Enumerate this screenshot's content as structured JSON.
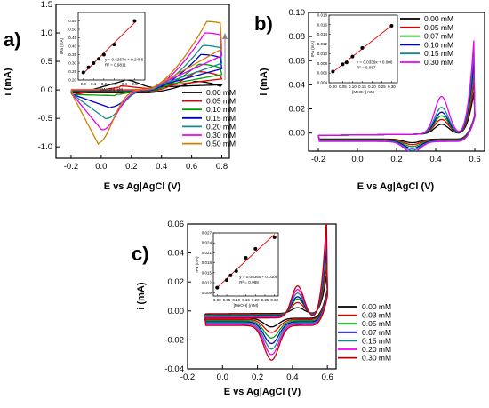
{
  "figure": {
    "panel_labels": [
      "a)",
      "b)",
      "c)"
    ]
  },
  "chart_data": [
    {
      "type": "line",
      "panel": "a)",
      "xlabel": "E vs Ag|AgCl (V)",
      "ylabel": "i (mA)",
      "xlim": [
        -0.3,
        0.85
      ],
      "ylim": [
        -1.2,
        1.5
      ],
      "xticks": [
        "-0.2",
        "0.0",
        "0.2",
        "0.4",
        "0.6",
        "0.8"
      ],
      "yticks": [
        "1.5",
        "1.0",
        "0.5",
        "0.0",
        "-0.5",
        "-1.0"
      ],
      "legend_position": "right",
      "series": [
        {
          "name": "0.00 mM",
          "color": "#000000",
          "anodic_peak": 0.15,
          "cathodic_peak": 0.16
        },
        {
          "name": "0.05 mM",
          "color": "#e00000",
          "anodic_peak": 0.32,
          "cathodic_peak": 0.05
        },
        {
          "name": "0.10 mM",
          "color": "#00a000",
          "anodic_peak": 0.45,
          "cathodic_peak": -0.1
        },
        {
          "name": "0.15 mM",
          "color": "#0000cc",
          "anodic_peak": 0.62,
          "cathodic_peak": -0.32
        },
        {
          "name": "0.20 mM",
          "color": "#138a8a",
          "anodic_peak": 0.78,
          "cathodic_peak": -0.52
        },
        {
          "name": "0.30 mM",
          "color": "#ee00ee",
          "anodic_peak": 1.0,
          "cathodic_peak": -0.72
        },
        {
          "name": "0.50 mM",
          "color": "#d08000",
          "anodic_peak": 1.2,
          "cathodic_peak": -0.95
        }
      ],
      "inset": {
        "ylabel": "IPa (mA)",
        "xlabel": "[MeOH] mM",
        "x": [
          0.0,
          0.05,
          0.1,
          0.15,
          0.2,
          0.3,
          0.5
        ],
        "y": [
          0.245,
          0.275,
          0.3,
          0.325,
          0.35,
          0.41,
          0.55
        ],
        "xlim": [
          -0.05,
          0.6
        ],
        "ylim": [
          0.2,
          0.6
        ],
        "xticks": [
          "0.0",
          "0.1",
          "0.2",
          "0.3",
          "0.4",
          "0.5"
        ],
        "yticks": [
          "0.55",
          "0.50",
          "0.45",
          "0.40",
          "0.35",
          "0.30",
          "0.25",
          "0.20"
        ],
        "equation": "y = 0.6267x + 0.2456",
        "r2": "R² = 0.9811"
      }
    },
    {
      "type": "line",
      "panel": "b)",
      "xlabel": "E vs Ag|AgCl (V)",
      "ylabel": "i (mA)",
      "xlim": [
        -0.25,
        0.65
      ],
      "ylim": [
        -0.015,
        0.1
      ],
      "xticks": [
        "-0.2",
        "0.0",
        "0.2",
        "0.4",
        "0.6"
      ],
      "yticks": [
        "0.10",
        "0.08",
        "0.06",
        "0.04",
        "0.02",
        "0.00"
      ],
      "legend_position": "top-right",
      "series": [
        {
          "name": "0.00 mM",
          "color": "#000000",
          "peak": 0.008
        },
        {
          "name": "0.05 mM",
          "color": "#e00000",
          "peak": 0.012
        },
        {
          "name": "0.07 mM",
          "color": "#00a000",
          "peak": 0.015
        },
        {
          "name": "0.10 mM",
          "color": "#0000cc",
          "peak": 0.018
        },
        {
          "name": "0.15 mM",
          "color": "#138a8a",
          "peak": 0.022
        },
        {
          "name": "0.30 mM",
          "color": "#ee00ee",
          "peak": 0.031
        }
      ],
      "inset": {
        "ylabel": "IPa (mA)",
        "xlabel": "[MeOH] mM",
        "x": [
          0.0,
          0.05,
          0.07,
          0.1,
          0.15,
          0.3
        ],
        "y": [
          0.0063,
          0.0078,
          0.0082,
          0.0094,
          0.0112,
          0.0158
        ],
        "xlim": [
          -0.02,
          0.33
        ],
        "ylim": [
          0.004,
          0.018
        ],
        "xticks": [
          "0.00",
          "0.05",
          "0.10",
          "0.15",
          "0.20",
          "0.25",
          "0.30"
        ],
        "yticks": [
          "0.018",
          "0.016",
          "0.014",
          "0.012",
          "0.010",
          "0.008",
          "0.006",
          "0.004"
        ],
        "equation": "y = 0.0339x + 0.006",
        "r2": "R² = 0.987"
      }
    },
    {
      "type": "line",
      "panel": "c)",
      "xlabel": "E vs Ag|AgCl (V)",
      "ylabel": "i (mA)",
      "xlim": [
        -0.2,
        0.65
      ],
      "ylim": [
        -0.04,
        0.06
      ],
      "xticks": [
        "-0.2",
        "0.0",
        "0.2",
        "0.4",
        "0.6"
      ],
      "yticks": [
        "0.06",
        "0.04",
        "0.02",
        "0.00",
        "-0.02",
        "-0.04"
      ],
      "legend_position": "right",
      "series": [
        {
          "name": "0.00 mM",
          "color": "#000000",
          "peak": 0.004
        },
        {
          "name": "0.03 mM",
          "color": "#e00000",
          "peak": 0.008
        },
        {
          "name": "0.05 mM",
          "color": "#00a000",
          "peak": 0.011
        },
        {
          "name": "0.07 mM",
          "color": "#0000cc",
          "peak": 0.013
        },
        {
          "name": "0.15 mM",
          "color": "#138a8a",
          "peak": 0.016
        },
        {
          "name": "0.20 mM",
          "color": "#ee00ee",
          "peak": 0.019
        },
        {
          "name": "0.30 mM",
          "color": "#c00000",
          "peak": 0.022
        }
      ],
      "inset": {
        "ylabel": "IPa (mA)",
        "xlabel": "[MeOH] (mM)",
        "x": [
          0.0,
          0.05,
          0.07,
          0.1,
          0.15,
          0.2,
          0.3
        ],
        "y": [
          0.0105,
          0.0128,
          0.0142,
          0.0155,
          0.0195,
          0.0222,
          0.0257
        ],
        "xlim": [
          -0.02,
          0.32
        ],
        "ylim": [
          0.008,
          0.027
        ],
        "xticks": [
          "0.00",
          "0.05",
          "0.10",
          "0.15",
          "0.20",
          "0.25",
          "0.30"
        ],
        "yticks": [
          "0.027",
          "0.024",
          "0.021",
          "0.018",
          "0.015",
          "0.012",
          "0.009"
        ],
        "equation": "y = 0.0536x + 0.0109",
        "r2": "R² = 0.988"
      }
    }
  ]
}
